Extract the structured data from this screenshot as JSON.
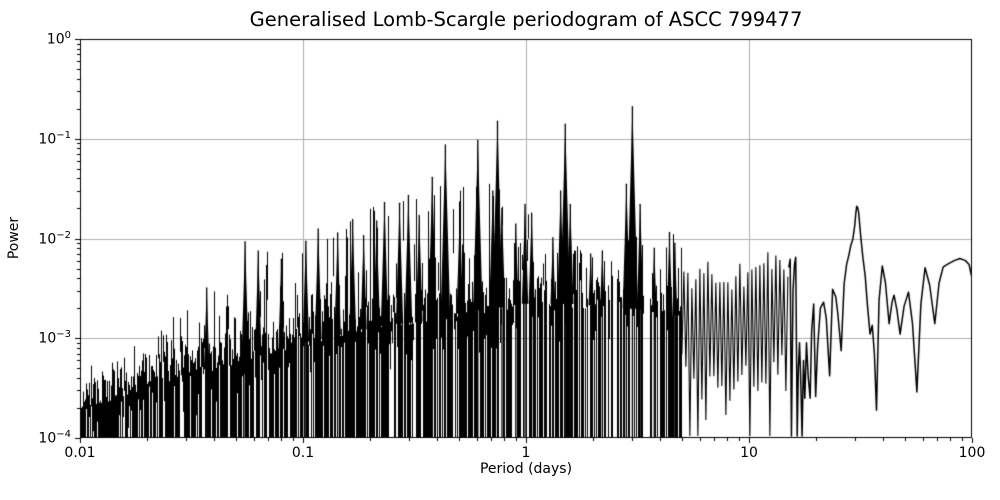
{
  "chart_data": {
    "type": "line",
    "title": "Generalised Lomb-Scargle periodogram of ASCC 799477",
    "xlabel": "Period (days)",
    "ylabel": "Power",
    "xscale": "log",
    "yscale": "log",
    "xlim": [
      0.01,
      100
    ],
    "ylim": [
      0.0001,
      1
    ],
    "grid": true,
    "legend": "none",
    "line_color": "#000000",
    "grid_color": "#b0b0b0",
    "xticks": [
      {
        "value": 0.01,
        "label": "0.01"
      },
      {
        "value": 0.1,
        "label": "0.1"
      },
      {
        "value": 1,
        "label": "1"
      },
      {
        "value": 10,
        "label": "10"
      },
      {
        "value": 100,
        "label": "100"
      }
    ],
    "yticks": [
      {
        "value": 1,
        "base": "10",
        "exp": "0"
      },
      {
        "value": 0.1,
        "base": "10",
        "exp": "−1"
      },
      {
        "value": 0.01,
        "base": "10",
        "exp": "−2"
      },
      {
        "value": 0.001,
        "base": "10",
        "exp": "−3"
      },
      {
        "value": 0.0001,
        "base": "10",
        "exp": "−4"
      }
    ],
    "major_peaks": [
      [
        0.037,
        0.0032
      ],
      [
        0.055,
        0.0093
      ],
      [
        0.063,
        0.0075
      ],
      [
        0.08,
        0.0062
      ],
      [
        0.103,
        0.0094
      ],
      [
        0.117,
        0.0125
      ],
      [
        0.143,
        0.0114
      ],
      [
        0.167,
        0.0155
      ],
      [
        0.187,
        0.0107
      ],
      [
        0.214,
        0.015
      ],
      [
        0.232,
        0.023
      ],
      [
        0.271,
        0.0225
      ],
      [
        0.297,
        0.027
      ],
      [
        0.332,
        0.017
      ],
      [
        0.38,
        0.041
      ],
      [
        0.435,
        0.087
      ],
      [
        0.505,
        0.0185
      ],
      [
        0.608,
        0.097
      ],
      [
        0.71,
        0.03
      ],
      [
        0.745,
        0.15
      ],
      [
        0.78,
        0.02
      ],
      [
        0.9,
        0.014
      ],
      [
        0.99,
        0.022
      ],
      [
        1.06,
        0.018
      ],
      [
        1.32,
        0.0102
      ],
      [
        1.43,
        0.03
      ],
      [
        1.5,
        0.14
      ],
      [
        1.58,
        0.022
      ],
      [
        1.95,
        0.007
      ],
      [
        2.2,
        0.0075
      ],
      [
        2.82,
        0.035
      ],
      [
        3.0,
        0.21
      ],
      [
        3.25,
        0.022
      ],
      [
        3.76,
        0.008
      ],
      [
        4.4,
        0.0115
      ],
      [
        4.65,
        0.009
      ]
    ],
    "noise_region": [
      0.01,
      5
    ],
    "base_envelope": [
      [
        0.01,
        0.00026
      ],
      [
        0.02,
        0.0004
      ],
      [
        0.04,
        0.00065
      ],
      [
        0.07,
        0.0009
      ],
      [
        0.1,
        0.00115
      ],
      [
        0.2,
        0.0016
      ],
      [
        0.35,
        0.0019
      ],
      [
        0.6,
        0.0024
      ],
      [
        1.0,
        0.0028
      ],
      [
        1.5,
        0.0028
      ],
      [
        2.5,
        0.0026
      ],
      [
        3.5,
        0.0024
      ],
      [
        5.0,
        0.002
      ]
    ],
    "noise_envelope": [
      [
        0.01,
        0.00045
      ],
      [
        0.015,
        0.0006
      ],
      [
        0.02,
        0.00085
      ],
      [
        0.03,
        0.0015
      ],
      [
        0.045,
        0.0026
      ],
      [
        0.06,
        0.005
      ],
      [
        0.08,
        0.006
      ],
      [
        0.1,
        0.008
      ],
      [
        0.14,
        0.01
      ],
      [
        0.18,
        0.014
      ],
      [
        0.23,
        0.019
      ],
      [
        0.3,
        0.022
      ],
      [
        0.4,
        0.028
      ],
      [
        0.55,
        0.025
      ],
      [
        0.7,
        0.03
      ],
      [
        0.85,
        0.018
      ],
      [
        1.0,
        0.021
      ],
      [
        1.2,
        0.011
      ],
      [
        1.6,
        0.016
      ],
      [
        2.0,
        0.008
      ],
      [
        2.5,
        0.007
      ],
      [
        3.0,
        0.013
      ],
      [
        3.6,
        0.0085
      ],
      [
        4.3,
        0.01
      ],
      [
        5.0,
        0.006
      ]
    ],
    "zigzag_region": [
      5,
      15.1
    ],
    "zigzag_envelope": [
      [
        5.0,
        0.0042
      ],
      [
        7.0,
        0.0045
      ],
      [
        9.0,
        0.0042
      ],
      [
        11.0,
        0.0045
      ],
      [
        12.5,
        0.006
      ],
      [
        13.5,
        0.0066
      ],
      [
        14.5,
        0.0058
      ],
      [
        15.1,
        0.0055
      ]
    ],
    "curve_points": [
      [
        15.1,
        0.0052
      ],
      [
        15.3,
        0.0062
      ],
      [
        15.5,
        0.000105
      ],
      [
        15.75,
        0.003
      ],
      [
        16.0,
        0.0055
      ],
      [
        16.2,
        0.0065
      ],
      [
        16.45,
        0.000105
      ],
      [
        16.65,
        0.0005
      ],
      [
        16.85,
        0.0009
      ],
      [
        17.05,
        0.0004
      ],
      [
        17.3,
        0.000105
      ],
      [
        17.55,
        0.0006
      ],
      [
        17.8,
        0.00025
      ],
      [
        18.1,
        0.0009
      ],
      [
        18.45,
        0.0004
      ],
      [
        18.8,
        0.00025
      ],
      [
        19.1,
        0.0012
      ],
      [
        19.5,
        0.0022
      ],
      [
        19.9,
        0.00026
      ],
      [
        20.3,
        0.0008
      ],
      [
        20.9,
        0.002
      ],
      [
        21.6,
        0.0023
      ],
      [
        22.2,
        0.0016
      ],
      [
        23.0,
        0.00042
      ],
      [
        23.7,
        0.0031
      ],
      [
        24.5,
        0.0026
      ],
      [
        25.0,
        0.0018
      ],
      [
        25.9,
        0.00075
      ],
      [
        26.7,
        0.0035
      ],
      [
        27.4,
        0.0055
      ],
      [
        28.0,
        0.0067
      ],
      [
        28.6,
        0.0085
      ],
      [
        29.2,
        0.0098
      ],
      [
        29.8,
        0.0135
      ],
      [
        30.1,
        0.0175
      ],
      [
        30.4,
        0.021
      ],
      [
        30.7,
        0.0205
      ],
      [
        31.0,
        0.0185
      ],
      [
        31.7,
        0.0105
      ],
      [
        32.4,
        0.0065
      ],
      [
        33.2,
        0.0042
      ],
      [
        34.0,
        0.0021
      ],
      [
        34.9,
        0.0011
      ],
      [
        35.7,
        0.00135
      ],
      [
        36.5,
        0.0007
      ],
      [
        37.3,
        0.00019
      ],
      [
        38.3,
        0.0024
      ],
      [
        39.6,
        0.0053
      ],
      [
        40.9,
        0.0036
      ],
      [
        42.5,
        0.0014
      ],
      [
        43.8,
        0.0023
      ],
      [
        44.7,
        0.0027
      ],
      [
        46.1,
        0.0019
      ],
      [
        47.6,
        0.0011
      ],
      [
        49.6,
        0.0021
      ],
      [
        51.9,
        0.0029
      ],
      [
        54.1,
        0.0014
      ],
      [
        56.6,
        0.00029
      ],
      [
        59.0,
        0.0022
      ],
      [
        61.6,
        0.0051
      ],
      [
        64.6,
        0.0034
      ],
      [
        68.1,
        0.0014
      ],
      [
        71.2,
        0.0036
      ],
      [
        74.3,
        0.0052
      ],
      [
        78.5,
        0.0056
      ],
      [
        83.2,
        0.006
      ],
      [
        88.2,
        0.0063
      ],
      [
        93.5,
        0.006
      ],
      [
        97.0,
        0.0055
      ],
      [
        100,
        0.004
      ]
    ]
  }
}
